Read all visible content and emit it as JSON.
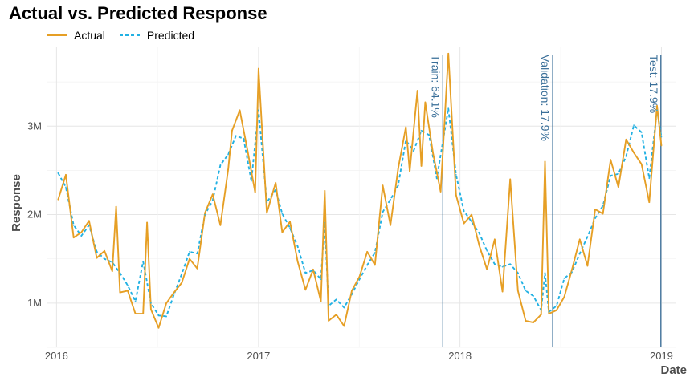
{
  "chart_data": {
    "type": "line",
    "title": "Actual vs. Predicted Response",
    "xlabel": "Date",
    "ylabel": "Response",
    "x_ticks": [
      "2016",
      "2017",
      "2018",
      "2019"
    ],
    "y_ticks": [
      "1M",
      "2M",
      "3M"
    ],
    "ylim": [
      500000,
      3900000
    ],
    "grid": true,
    "legend_position": "top-left",
    "colors": {
      "actual": "#e69f25",
      "predicted": "#22b1e3",
      "split_line": "#3a6f99"
    },
    "splits": [
      {
        "date": "2017-12-01",
        "label": "Train: 64.1%"
      },
      {
        "date": "2018-06-18",
        "label": "Validation: 17.9%"
      },
      {
        "date": "2018-12-31",
        "label": "Test: 17.9%"
      }
    ],
    "series": [
      {
        "name": "Actual",
        "points": [
          [
            "2016-01-04",
            2170000
          ],
          [
            "2016-01-18",
            2450000
          ],
          [
            "2016-02-01",
            1740000
          ],
          [
            "2016-02-15",
            1800000
          ],
          [
            "2016-02-29",
            1930000
          ],
          [
            "2016-03-14",
            1510000
          ],
          [
            "2016-03-28",
            1590000
          ],
          [
            "2016-04-11",
            1360000
          ],
          [
            "2016-04-18",
            2090000
          ],
          [
            "2016-04-25",
            1120000
          ],
          [
            "2016-05-09",
            1140000
          ],
          [
            "2016-05-23",
            880000
          ],
          [
            "2016-06-06",
            880000
          ],
          [
            "2016-06-13",
            1910000
          ],
          [
            "2016-06-20",
            930000
          ],
          [
            "2016-07-04",
            720000
          ],
          [
            "2016-07-18",
            1000000
          ],
          [
            "2016-08-01",
            1120000
          ],
          [
            "2016-08-15",
            1230000
          ],
          [
            "2016-08-29",
            1500000
          ],
          [
            "2016-09-12",
            1390000
          ],
          [
            "2016-09-26",
            2020000
          ],
          [
            "2016-10-10",
            2230000
          ],
          [
            "2016-10-24",
            1880000
          ],
          [
            "2016-11-07",
            2510000
          ],
          [
            "2016-11-14",
            2950000
          ],
          [
            "2016-11-28",
            3180000
          ],
          [
            "2016-12-12",
            2730000
          ],
          [
            "2016-12-26",
            2250000
          ],
          [
            "2017-01-01",
            3650000
          ],
          [
            "2017-01-16",
            2020000
          ],
          [
            "2017-02-01",
            2360000
          ],
          [
            "2017-02-13",
            1800000
          ],
          [
            "2017-02-27",
            1920000
          ],
          [
            "2017-03-13",
            1470000
          ],
          [
            "2017-03-27",
            1150000
          ],
          [
            "2017-04-10",
            1380000
          ],
          [
            "2017-04-24",
            1020000
          ],
          [
            "2017-05-01",
            2270000
          ],
          [
            "2017-05-08",
            800000
          ],
          [
            "2017-05-22",
            870000
          ],
          [
            "2017-06-05",
            740000
          ],
          [
            "2017-06-19",
            1140000
          ],
          [
            "2017-07-03",
            1300000
          ],
          [
            "2017-07-17",
            1580000
          ],
          [
            "2017-07-31",
            1430000
          ],
          [
            "2017-08-14",
            2330000
          ],
          [
            "2017-08-28",
            1880000
          ],
          [
            "2017-09-11",
            2520000
          ],
          [
            "2017-09-25",
            2990000
          ],
          [
            "2017-10-02",
            2490000
          ],
          [
            "2017-10-16",
            3400000
          ],
          [
            "2017-10-23",
            2550000
          ],
          [
            "2017-10-30",
            3270000
          ],
          [
            "2017-11-13",
            2700000
          ],
          [
            "2017-11-27",
            2260000
          ],
          [
            "2017-12-11",
            3820000
          ],
          [
            "2017-12-25",
            2220000
          ],
          [
            "2018-01-08",
            1900000
          ],
          [
            "2018-01-22",
            2000000
          ],
          [
            "2018-02-05",
            1650000
          ],
          [
            "2018-02-19",
            1380000
          ],
          [
            "2018-03-05",
            1720000
          ],
          [
            "2018-03-19",
            1130000
          ],
          [
            "2018-04-02",
            2400000
          ],
          [
            "2018-04-16",
            1140000
          ],
          [
            "2018-04-30",
            800000
          ],
          [
            "2018-05-14",
            780000
          ],
          [
            "2018-05-28",
            870000
          ],
          [
            "2018-06-04",
            2600000
          ],
          [
            "2018-06-11",
            880000
          ],
          [
            "2018-06-25",
            920000
          ],
          [
            "2018-07-09",
            1070000
          ],
          [
            "2018-07-23",
            1380000
          ],
          [
            "2018-08-06",
            1720000
          ],
          [
            "2018-08-20",
            1420000
          ],
          [
            "2018-09-03",
            2060000
          ],
          [
            "2018-09-17",
            2010000
          ],
          [
            "2018-10-01",
            2620000
          ],
          [
            "2018-10-15",
            2310000
          ],
          [
            "2018-10-29",
            2850000
          ],
          [
            "2018-11-12",
            2700000
          ],
          [
            "2018-11-26",
            2570000
          ],
          [
            "2018-12-10",
            2140000
          ],
          [
            "2018-12-24",
            3230000
          ],
          [
            "2019-01-01",
            2780000
          ]
        ]
      },
      {
        "name": "Predicted",
        "points": [
          [
            "2016-01-04",
            2470000
          ],
          [
            "2016-01-18",
            2310000
          ],
          [
            "2016-02-01",
            1880000
          ],
          [
            "2016-02-15",
            1760000
          ],
          [
            "2016-02-29",
            1880000
          ],
          [
            "2016-03-14",
            1580000
          ],
          [
            "2016-03-28",
            1500000
          ],
          [
            "2016-04-11",
            1460000
          ],
          [
            "2016-04-25",
            1340000
          ],
          [
            "2016-05-09",
            1200000
          ],
          [
            "2016-05-23",
            1020000
          ],
          [
            "2016-06-06",
            1470000
          ],
          [
            "2016-06-20",
            1000000
          ],
          [
            "2016-07-04",
            860000
          ],
          [
            "2016-07-18",
            850000
          ],
          [
            "2016-08-01",
            1100000
          ],
          [
            "2016-08-15",
            1330000
          ],
          [
            "2016-08-29",
            1580000
          ],
          [
            "2016-09-12",
            1560000
          ],
          [
            "2016-09-26",
            2000000
          ],
          [
            "2016-10-10",
            2160000
          ],
          [
            "2016-10-24",
            2560000
          ],
          [
            "2016-11-07",
            2680000
          ],
          [
            "2016-11-21",
            2890000
          ],
          [
            "2016-12-05",
            2860000
          ],
          [
            "2016-12-19",
            2380000
          ],
          [
            "2017-01-01",
            3180000
          ],
          [
            "2017-01-16",
            2140000
          ],
          [
            "2017-02-01",
            2280000
          ],
          [
            "2017-02-13",
            2010000
          ],
          [
            "2017-02-27",
            1850000
          ],
          [
            "2017-03-13",
            1640000
          ],
          [
            "2017-03-27",
            1340000
          ],
          [
            "2017-04-10",
            1370000
          ],
          [
            "2017-04-24",
            1270000
          ],
          [
            "2017-05-01",
            1910000
          ],
          [
            "2017-05-08",
            970000
          ],
          [
            "2017-05-22",
            1040000
          ],
          [
            "2017-06-05",
            950000
          ],
          [
            "2017-06-19",
            1100000
          ],
          [
            "2017-07-03",
            1270000
          ],
          [
            "2017-07-17",
            1430000
          ],
          [
            "2017-07-31",
            1570000
          ],
          [
            "2017-08-14",
            2030000
          ],
          [
            "2017-08-28",
            2170000
          ],
          [
            "2017-09-11",
            2330000
          ],
          [
            "2017-09-25",
            2840000
          ],
          [
            "2017-10-09",
            2720000
          ],
          [
            "2017-10-23",
            2950000
          ],
          [
            "2017-11-06",
            2900000
          ],
          [
            "2017-11-20",
            2410000
          ],
          [
            "2017-12-11",
            3200000
          ],
          [
            "2017-12-25",
            2450000
          ],
          [
            "2018-01-08",
            2040000
          ],
          [
            "2018-01-22",
            1920000
          ],
          [
            "2018-02-05",
            1790000
          ],
          [
            "2018-02-19",
            1590000
          ],
          [
            "2018-03-05",
            1440000
          ],
          [
            "2018-03-19",
            1410000
          ],
          [
            "2018-04-02",
            1440000
          ],
          [
            "2018-04-16",
            1340000
          ],
          [
            "2018-04-30",
            1140000
          ],
          [
            "2018-05-14",
            1080000
          ],
          [
            "2018-05-28",
            920000
          ],
          [
            "2018-06-04",
            1340000
          ],
          [
            "2018-06-11",
            900000
          ],
          [
            "2018-06-25",
            970000
          ],
          [
            "2018-07-09",
            1280000
          ],
          [
            "2018-07-23",
            1350000
          ],
          [
            "2018-08-06",
            1560000
          ],
          [
            "2018-08-20",
            1750000
          ],
          [
            "2018-09-03",
            1960000
          ],
          [
            "2018-09-17",
            2100000
          ],
          [
            "2018-10-01",
            2440000
          ],
          [
            "2018-10-15",
            2460000
          ],
          [
            "2018-10-29",
            2660000
          ],
          [
            "2018-11-12",
            3010000
          ],
          [
            "2018-11-26",
            2930000
          ],
          [
            "2018-12-10",
            2410000
          ],
          [
            "2018-12-24",
            3180000
          ],
          [
            "2019-01-01",
            2880000
          ]
        ]
      }
    ]
  }
}
